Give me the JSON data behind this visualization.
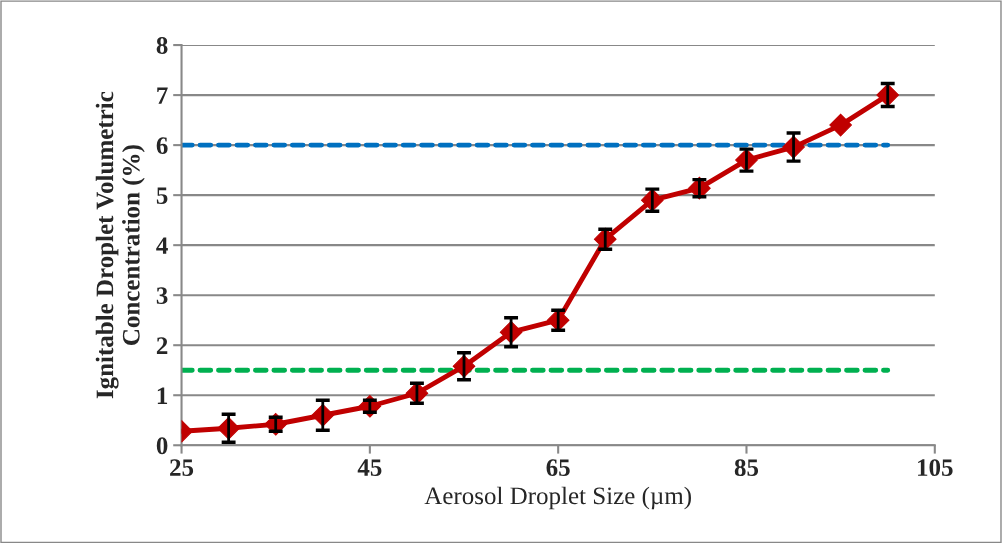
{
  "chart_data": {
    "type": "line",
    "xlabel": "Aerosol Droplet Size (µm)",
    "ylabel": "Ignitable Droplet Volumetric\nConcentration (%)",
    "xlim": [
      25,
      105
    ],
    "xticks": [
      25,
      45,
      65,
      85,
      105
    ],
    "ylim": [
      0,
      8
    ],
    "yticks": [
      0,
      1,
      2,
      3,
      4,
      5,
      6,
      7,
      8
    ],
    "grid": "y",
    "legend": false,
    "series": [
      {
        "color": "#0070c0",
        "line_style": "dashed",
        "marker": "none",
        "x": [
          25,
          100
        ],
        "values": [
          6,
          6
        ]
      },
      {
        "color": "#00b050",
        "line_style": "dashed",
        "marker": "none",
        "x": [
          25,
          100
        ],
        "values": [
          1.5,
          1.5
        ]
      },
      {
        "color": "#c00000",
        "line_style": "solid",
        "marker": "diamond",
        "x": [
          25,
          30,
          35,
          40,
          45,
          50,
          55,
          60,
          65,
          70,
          75,
          80,
          85,
          90,
          95,
          100
        ],
        "values": [
          0.28,
          0.34,
          0.42,
          0.6,
          0.78,
          1.04,
          1.58,
          2.26,
          2.5,
          4.12,
          4.9,
          5.14,
          5.7,
          5.96,
          6.4,
          7.0
        ],
        "errors": [
          null,
          0.28,
          0.14,
          0.3,
          0.12,
          0.2,
          0.27,
          0.29,
          0.2,
          0.2,
          0.22,
          0.17,
          0.22,
          0.28,
          null,
          0.23
        ]
      }
    ]
  }
}
